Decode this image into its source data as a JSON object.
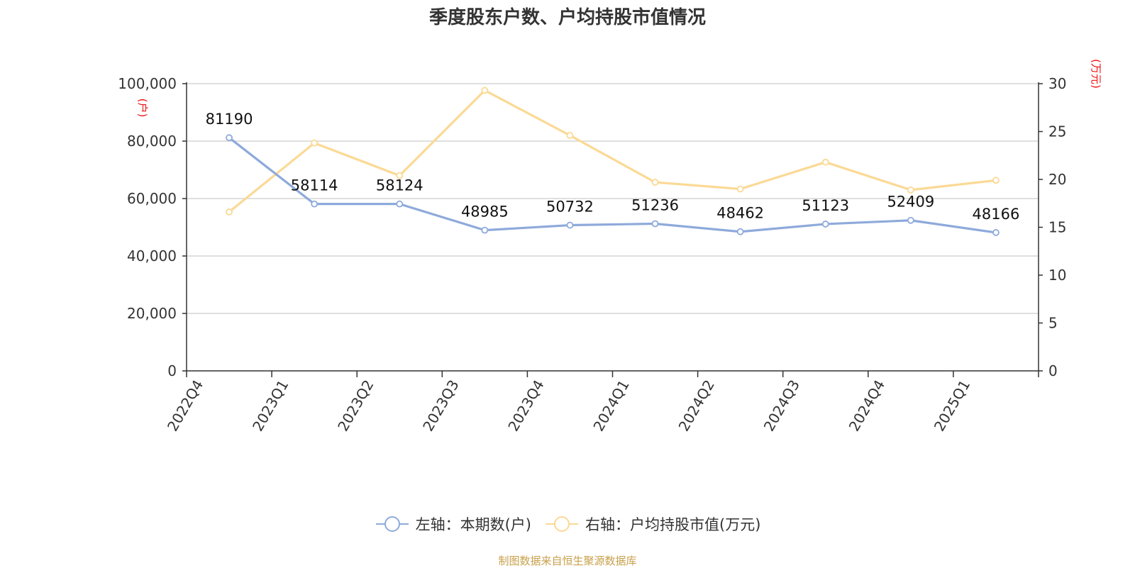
{
  "title": "季度股东户数、户均持股市值情况",
  "source": "制图数据来自恒生聚源数据库",
  "chart_data": {
    "type": "line",
    "title": "季度股东户数、户均持股市值情况",
    "categories": [
      "2022Q4",
      "2023Q1",
      "2023Q2",
      "2023Q3",
      "2023Q4",
      "2024Q1",
      "2024Q2",
      "2024Q3",
      "2024Q4",
      "2025Q1"
    ],
    "left_axis": {
      "unit": "(户)",
      "range": [
        0,
        100000
      ],
      "ticks": [
        "0",
        "20,000",
        "40,000",
        "60,000",
        "80,000",
        "100,000"
      ],
      "tick_values": [
        0,
        20000,
        40000,
        60000,
        80000,
        100000
      ]
    },
    "right_axis": {
      "unit": "(万元)",
      "range": [
        0,
        30
      ],
      "ticks": [
        "0",
        "5",
        "10",
        "15",
        "20",
        "25",
        "30"
      ],
      "tick_values": [
        0,
        5,
        10,
        15,
        20,
        25,
        30
      ]
    },
    "grid": true,
    "legend_position": "bottom-center",
    "series": [
      {
        "name": "左轴：本期数(户)",
        "axis": "left",
        "color": "#8eaadb",
        "values": [
          81190,
          58114,
          58124,
          48985,
          50732,
          51236,
          48462,
          51123,
          52409,
          48166
        ],
        "labels": [
          "81190",
          "58114",
          "58124",
          "48985",
          "50732",
          "51236",
          "48462",
          "51123",
          "52409",
          "48166"
        ]
      },
      {
        "name": "右轴：户均持股市值(万元)",
        "axis": "right",
        "color": "#fbd995",
        "values": [
          16.6,
          23.8,
          20.4,
          29.3,
          24.6,
          19.7,
          19.0,
          21.8,
          18.9,
          19.9
        ]
      }
    ]
  }
}
